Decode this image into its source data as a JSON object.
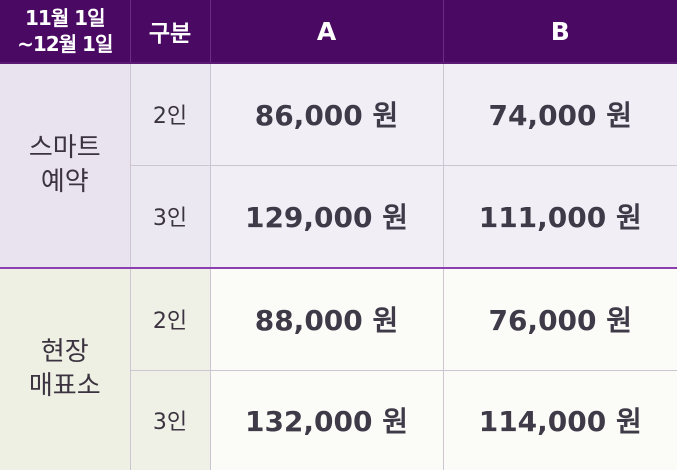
{
  "header": {
    "period_line1": "11월 1일",
    "period_line2": "~12월 1일",
    "type": "구분",
    "col_a": "A",
    "col_b": "B"
  },
  "groups": [
    {
      "name_line1": "스마트",
      "name_line2": "예약",
      "rows": [
        {
          "pax": "2인",
          "a": "86,000 원",
          "b": "74,000 원"
        },
        {
          "pax": "3인",
          "a": "129,000 원",
          "b": "111,000 원"
        }
      ]
    },
    {
      "name_line1": "현장",
      "name_line2": "매표소",
      "rows": [
        {
          "pax": "2인",
          "a": "88,000 원",
          "b": "76,000 원"
        },
        {
          "pax": "3인",
          "a": "132,000 원",
          "b": "114,000 원"
        }
      ]
    }
  ],
  "colors": {
    "header_bg": "#4a0a63",
    "group_divider": "#8b3fb0",
    "smart_bg": "#e8e3ef",
    "onsite_bg": "#eef0e4"
  }
}
